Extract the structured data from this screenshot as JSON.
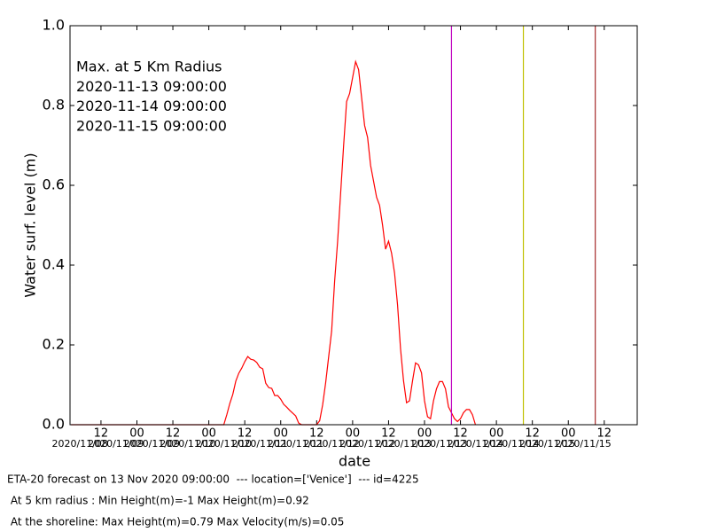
{
  "chart_data": {
    "type": "line",
    "xlabel": "date",
    "ylabel": "Water surf. level (m)",
    "xlim": [
      "2020-11-08 01:40",
      "2020-11-15 23:00"
    ],
    "ylim": [
      0,
      1
    ],
    "yticks": [
      {
        "value": 0,
        "label": "0.0"
      },
      0.2,
      0.4,
      0.6,
      0.8,
      {
        "value": 1,
        "label": "1.0"
      }
    ],
    "xticks": [
      {
        "value": "2020-11-08 12:00",
        "label": "12"
      },
      {
        "value": "2020-11-09 00:00",
        "label": "00"
      },
      {
        "value": "2020-11-09 12:00",
        "label": "12"
      },
      {
        "value": "2020-11-10 00:00",
        "label": "00"
      },
      {
        "value": "2020-11-10 12:00",
        "label": "12"
      },
      {
        "value": "2020-11-11 00:00",
        "label": "00"
      },
      {
        "value": "2020-11-11 12:00",
        "label": "12"
      },
      {
        "value": "2020-11-12 00:00",
        "label": "00"
      },
      {
        "value": "2020-11-12 12:00",
        "label": "12"
      },
      {
        "value": "2020-11-13 00:00",
        "label": "00"
      },
      {
        "value": "2020-11-13 12:00",
        "label": "12"
      },
      {
        "value": "2020-11-14 00:00",
        "label": "00"
      },
      {
        "value": "2020-11-14 12:00",
        "label": "12"
      },
      {
        "value": "2020-11-15 00:00",
        "label": "00"
      },
      {
        "value": "2020-11-15 12:00",
        "label": "12"
      }
    ],
    "xtick_dates": [
      "2020/11/08",
      "2020/11/09",
      "2020/11/09",
      "2020/11/10",
      "2020/11/10",
      "2020/11/11",
      "2020/11/11",
      "2020/11/12",
      "2020/11/12",
      "2020/11/13",
      "2020/11/13",
      "2020/11/14",
      "2020/11/14",
      "2020/11/15",
      "2020/11/15"
    ],
    "series": [
      {
        "name": "Max. at 5 Km Radius",
        "color": "#ff0000",
        "x": [
          "2020-11-08 02:00",
          "2020-11-10 05:00",
          "2020-11-10 06:00",
          "2020-11-10 07:00",
          "2020-11-10 08:00",
          "2020-11-10 09:00",
          "2020-11-10 10:00",
          "2020-11-10 11:00",
          "2020-11-10 12:00",
          "2020-11-10 13:00",
          "2020-11-10 14:00",
          "2020-11-10 15:00",
          "2020-11-10 16:00",
          "2020-11-10 17:00",
          "2020-11-10 18:00",
          "2020-11-10 19:00",
          "2020-11-10 20:00",
          "2020-11-10 21:00",
          "2020-11-10 22:00",
          "2020-11-10 23:00",
          "2020-11-11 00:00",
          "2020-11-11 01:00",
          "2020-11-11 02:00",
          "2020-11-11 03:00",
          "2020-11-11 04:00",
          "2020-11-11 05:00",
          "2020-11-11 06:00",
          "2020-11-11 07:00",
          "2020-11-11 08:00",
          "2020-11-11 09:00",
          "2020-11-11 10:00",
          "2020-11-11 11:00",
          "2020-11-11 12:00",
          "2020-11-11 13:00",
          "2020-11-11 14:00",
          "2020-11-11 15:00",
          "2020-11-11 16:00",
          "2020-11-11 17:00",
          "2020-11-11 18:00",
          "2020-11-11 19:00",
          "2020-11-11 20:00",
          "2020-11-11 21:00",
          "2020-11-11 22:00",
          "2020-11-11 23:00",
          "2020-11-12 00:00",
          "2020-11-12 01:00",
          "2020-11-12 02:00",
          "2020-11-12 03:00",
          "2020-11-12 04:00",
          "2020-11-12 05:00",
          "2020-11-12 06:00",
          "2020-11-12 07:00",
          "2020-11-12 08:00",
          "2020-11-12 09:00",
          "2020-11-12 10:00",
          "2020-11-12 11:00",
          "2020-11-12 12:00",
          "2020-11-12 13:00",
          "2020-11-12 14:00",
          "2020-11-12 15:00",
          "2020-11-12 16:00",
          "2020-11-12 17:00",
          "2020-11-12 18:00",
          "2020-11-12 19:00",
          "2020-11-12 20:00",
          "2020-11-12 21:00",
          "2020-11-12 22:00",
          "2020-11-12 23:00",
          "2020-11-13 00:00",
          "2020-11-13 01:00",
          "2020-11-13 02:00",
          "2020-11-13 03:00",
          "2020-11-13 04:00",
          "2020-11-13 05:00",
          "2020-11-13 06:00",
          "2020-11-13 07:00",
          "2020-11-13 08:00",
          "2020-11-13 09:00",
          "2020-11-13 10:00",
          "2020-11-13 11:00",
          "2020-11-13 12:00",
          "2020-11-13 13:00",
          "2020-11-13 14:00",
          "2020-11-13 15:00",
          "2020-11-13 16:00",
          "2020-11-13 17:00"
        ],
        "values": [
          0,
          0,
          0.025,
          0.053,
          0.076,
          0.109,
          0.129,
          0.142,
          0.158,
          0.171,
          0.164,
          0.162,
          0.156,
          0.144,
          0.14,
          0.104,
          0.093,
          0.091,
          0.073,
          0.073,
          0.064,
          0.051,
          0.044,
          0.036,
          0.029,
          0.022,
          0.004,
          0,
          0,
          0,
          0,
          0,
          0,
          0.01,
          0.05,
          0.105,
          0.17,
          0.235,
          0.36,
          0.46,
          0.58,
          0.7,
          0.81,
          0.83,
          0.87,
          0.91,
          0.89,
          0.82,
          0.75,
          0.72,
          0.65,
          0.61,
          0.57,
          0.55,
          0.5,
          0.44,
          0.46,
          0.43,
          0.38,
          0.3,
          0.19,
          0.11,
          0.055,
          0.06,
          0.11,
          0.155,
          0.15,
          0.13,
          0.06,
          0.02,
          0.015,
          0.06,
          0.09,
          0.108,
          0.108,
          0.09,
          0.045,
          0.03,
          0.015,
          0.008,
          0.015,
          0.03,
          0.038,
          0.038,
          0.025,
          0
        ]
      }
    ],
    "vlines": [
      {
        "name": "2020-11-13 09:00:00",
        "color": "#bf00bf"
      },
      {
        "name": "2020-11-14 09:00:00",
        "color": "#bfbf00"
      },
      {
        "name": "2020-11-15 09:00:00",
        "color": "#a52a2a"
      }
    ],
    "footer": [
      "ETA-20 forecast on 13 Nov 2020 09:00:00  --- location=['Venice']  --- id=4225",
      " At 5 km radius : Min Height(m)=-1 Max Height(m)=0.92",
      " At the shoreline: Max Height(m)=0.79 Max Velocity(m/s)=0.05"
    ]
  }
}
